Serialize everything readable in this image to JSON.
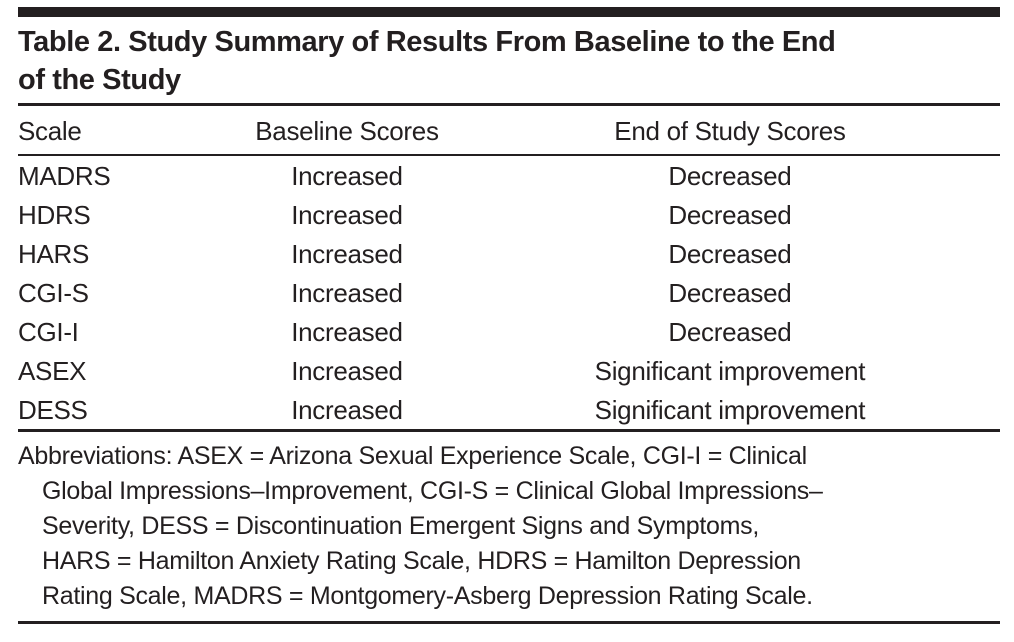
{
  "table": {
    "label": "Table 2",
    "title_lines": [
      "Table 2. Study Summary of Results From Baseline to the End",
      "of the Study"
    ],
    "columns": [
      "Scale",
      "Baseline Scores",
      "End of Study Scores"
    ],
    "rows": [
      [
        "MADRS",
        "Increased",
        "Decreased"
      ],
      [
        "HDRS",
        "Increased",
        "Decreased"
      ],
      [
        "HARS",
        "Increased",
        "Decreased"
      ],
      [
        "CGI-S",
        "Increased",
        "Decreased"
      ],
      [
        "CGI-I",
        "Increased",
        "Decreased"
      ],
      [
        "ASEX",
        "Increased",
        "Significant improvement"
      ],
      [
        "DESS",
        "Increased",
        "Significant improvement"
      ]
    ],
    "footnote_lines": [
      "Abbreviations: ASEX = Arizona Sexual Experience Scale, CGI-I = Clinical",
      "Global Impressions–Improvement, CGI-S = Clinical Global Impressions–",
      "Severity, DESS = Discontinuation Emergent Signs and Symptoms,",
      "HARS = Hamilton Anxiety Rating Scale, HDRS = Hamilton Depression",
      "Rating Scale, MADRS = Montgomery-Asberg Depression Rating Scale."
    ],
    "colors": {
      "ink": "#231f20",
      "background": "#ffffff"
    }
  }
}
